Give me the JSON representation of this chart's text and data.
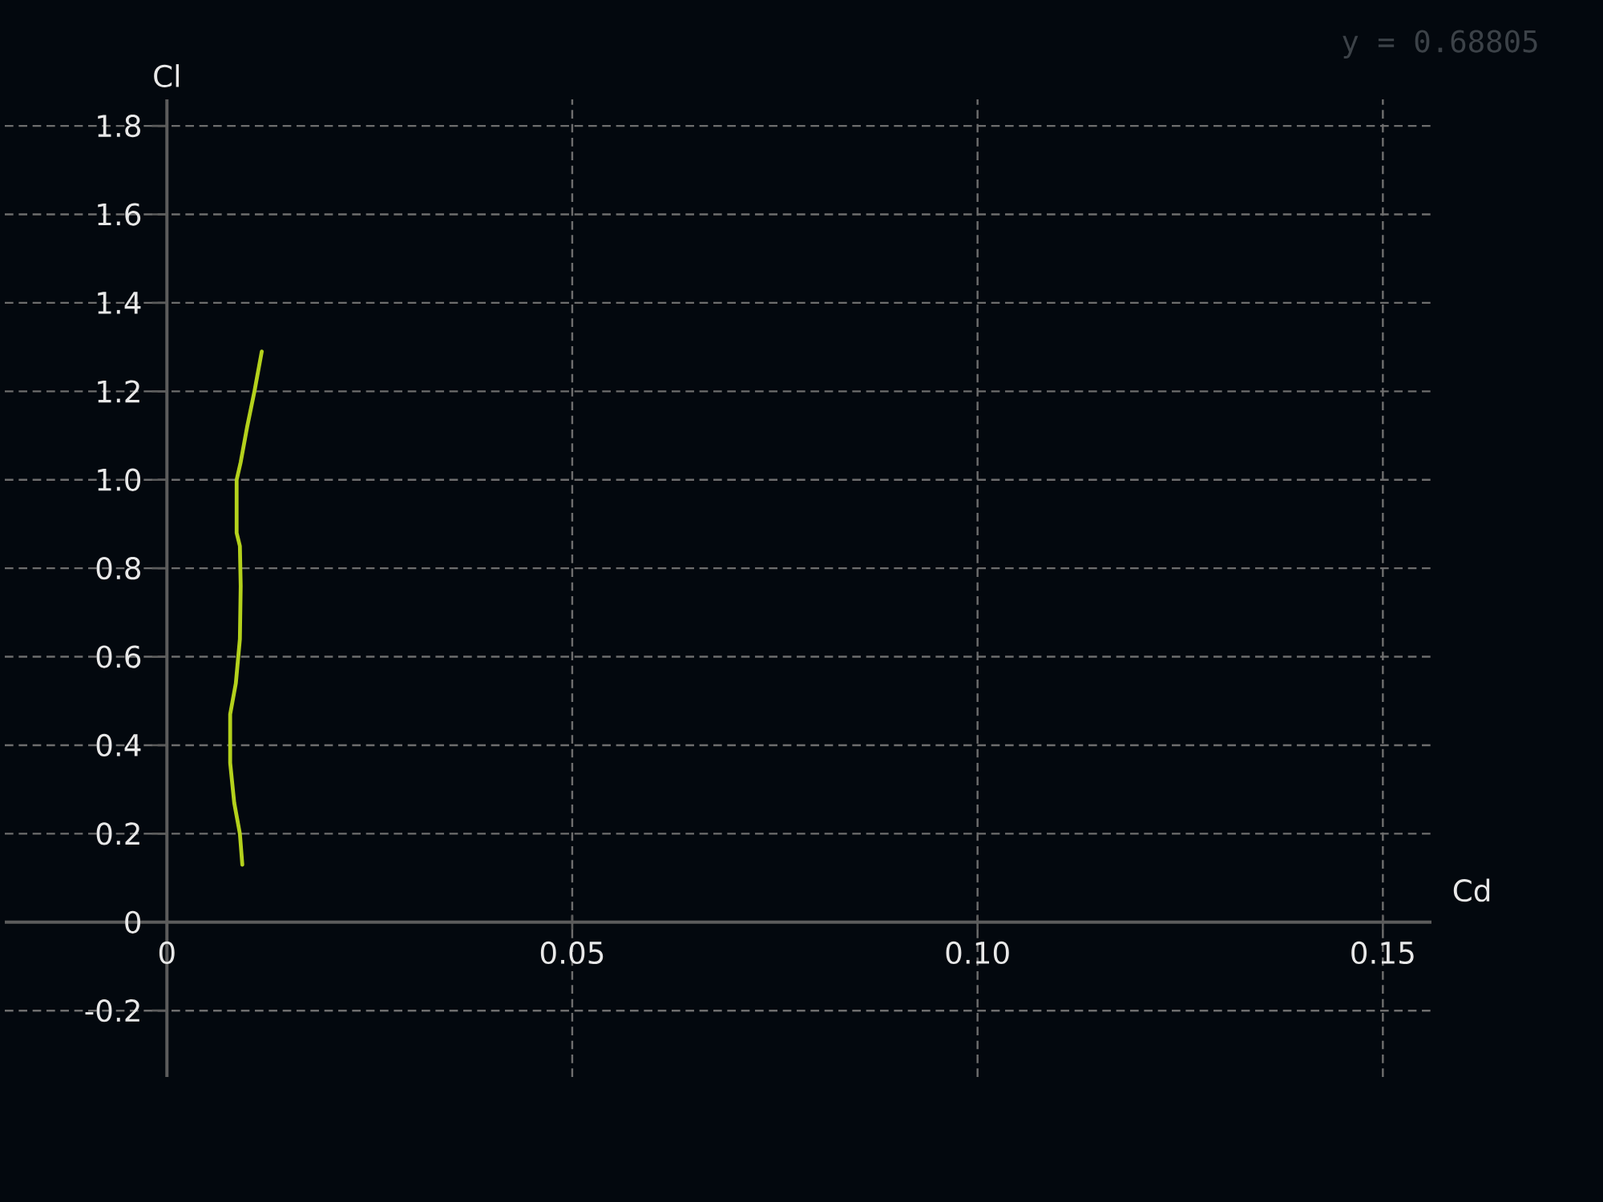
{
  "chart_data": {
    "type": "line",
    "xlabel": "Cd",
    "ylabel": "Cl",
    "annotations": [
      "y = 0.68805"
    ],
    "x": [
      0.0093,
      0.009,
      0.0083,
      0.0078,
      0.0078,
      0.0085,
      0.009,
      0.0091,
      0.009,
      0.0086,
      0.0086,
      0.0091,
      0.0099,
      0.0108,
      0.0117
    ],
    "values": [
      0.13,
      0.2,
      0.27,
      0.36,
      0.47,
      0.54,
      0.64,
      0.76,
      0.85,
      0.88,
      1.0,
      1.04,
      1.12,
      1.2,
      1.29
    ],
    "color": "#b4d11c",
    "xlim": [
      -0.02,
      0.156
    ],
    "ylim": [
      -0.35,
      1.86
    ],
    "xticks": [
      0,
      0.05,
      {
        "value": 0.1,
        "label": "0.10"
      },
      0.15
    ],
    "yticks": [
      -0.2,
      0,
      0.2,
      0.4,
      0.6,
      0.8,
      {
        "value": 1,
        "label": "1.0"
      },
      1.2,
      1.4,
      1.6,
      1.8
    ],
    "grid": true
  }
}
